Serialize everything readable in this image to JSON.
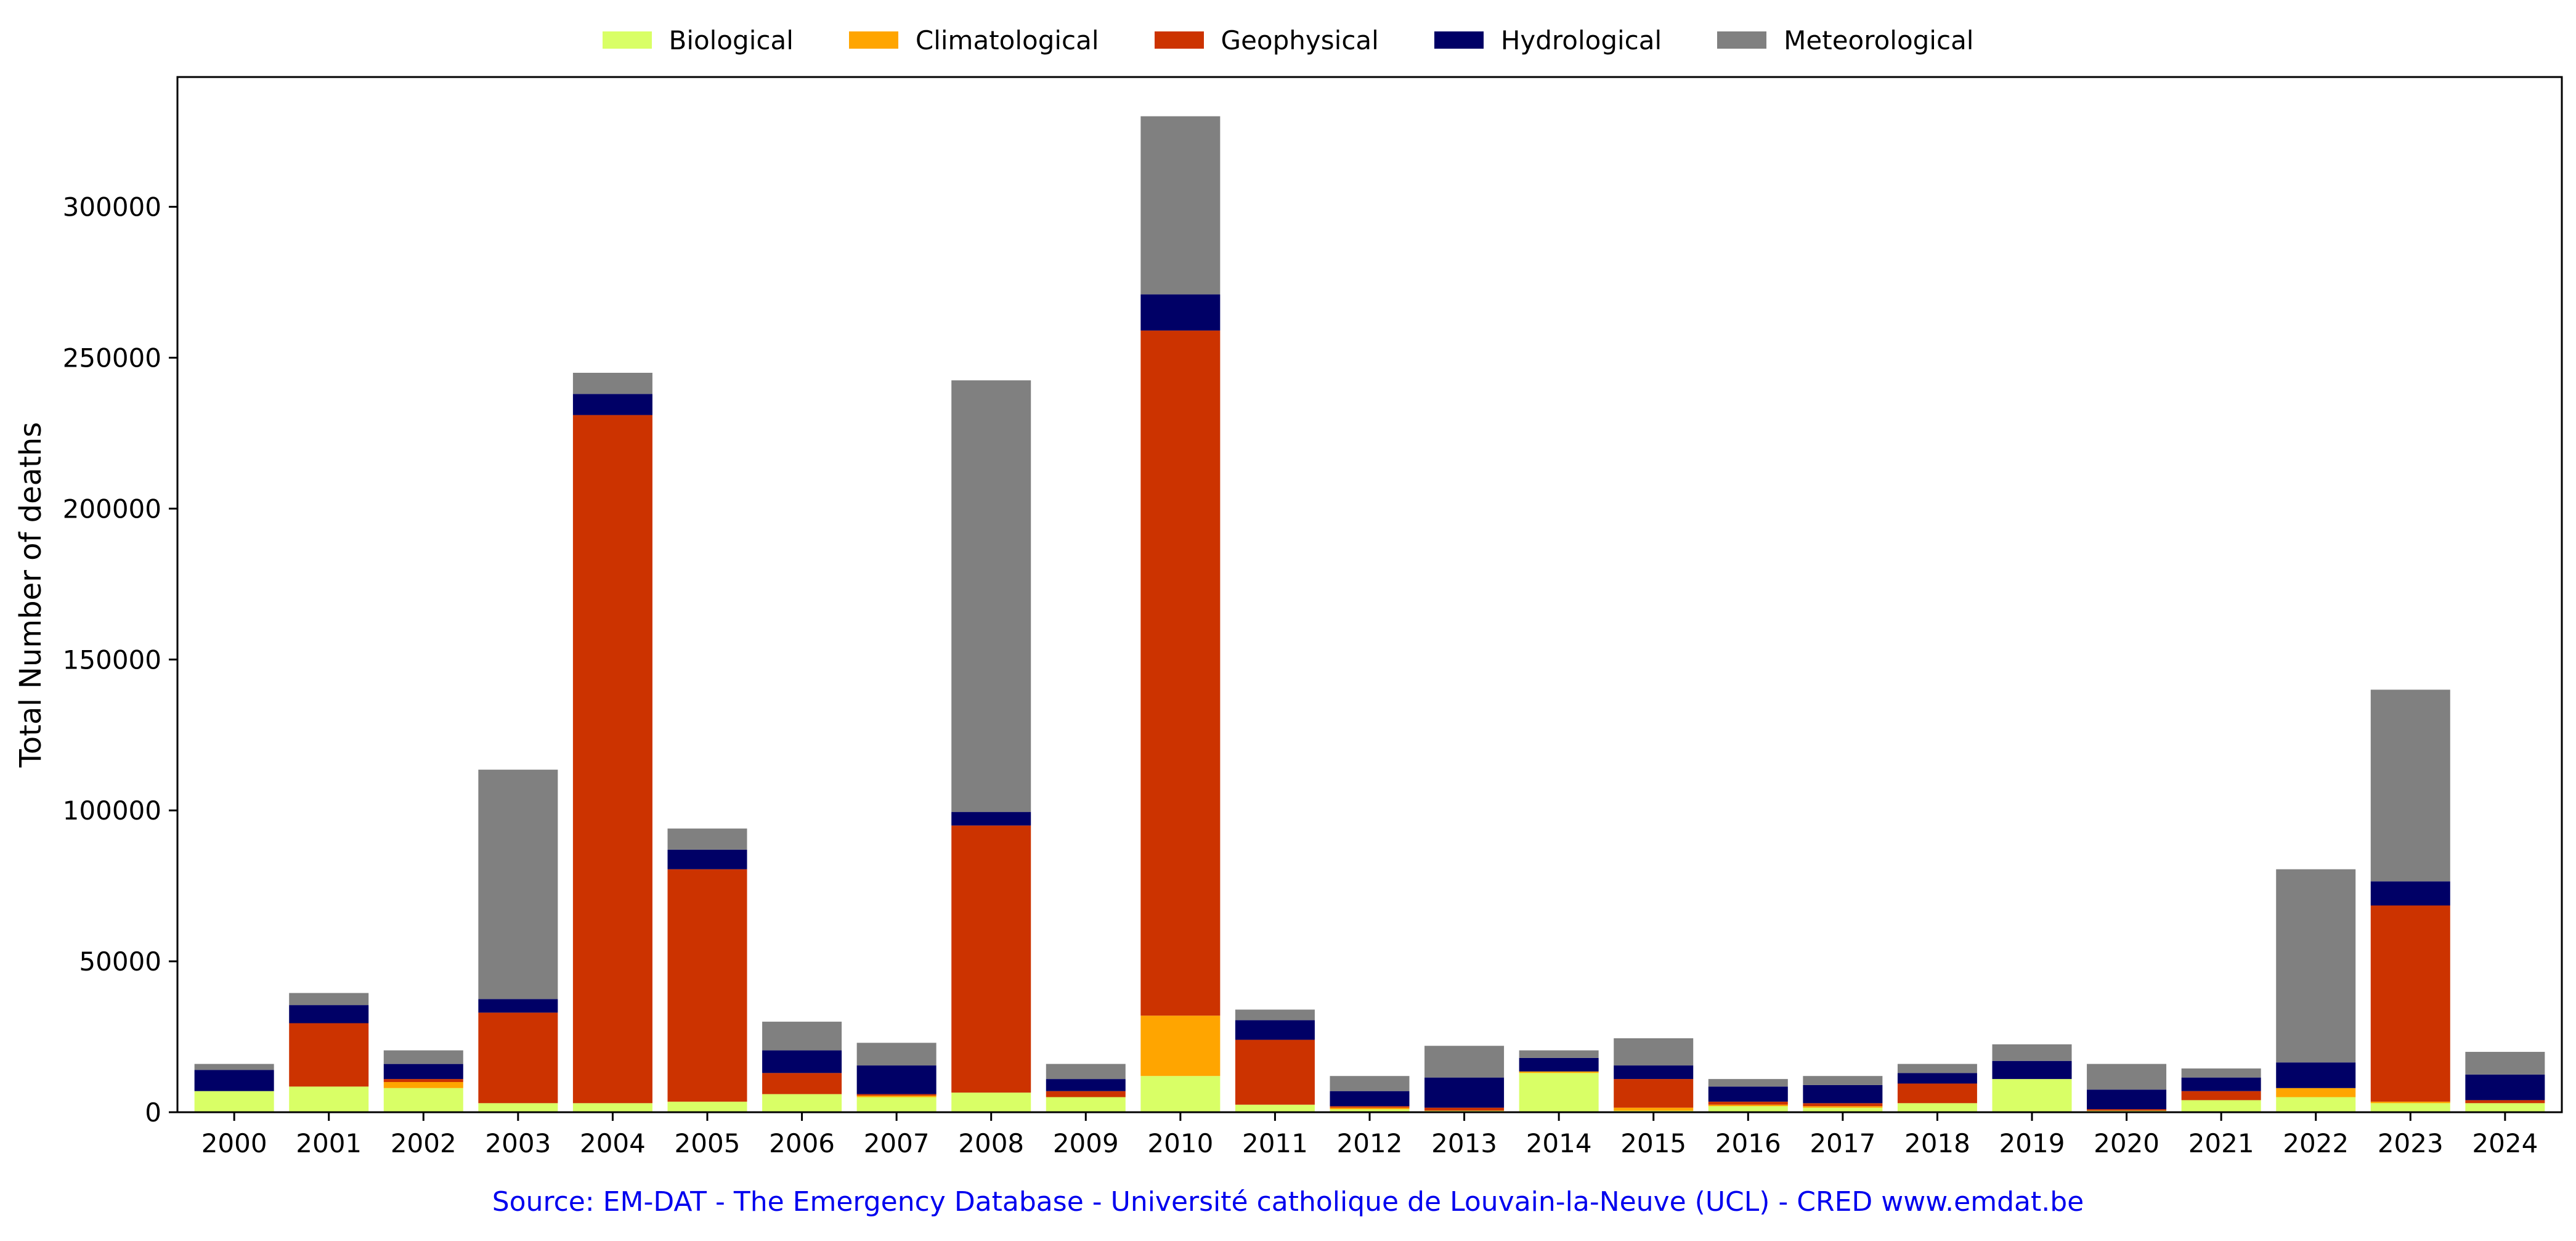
{
  "chart_data": {
    "type": "bar",
    "stacked": true,
    "categories": [
      "2000",
      "2001",
      "2002",
      "2003",
      "2004",
      "2005",
      "2006",
      "2007",
      "2008",
      "2009",
      "2010",
      "2011",
      "2012",
      "2013",
      "2014",
      "2015",
      "2016",
      "2017",
      "2018",
      "2019",
      "2020",
      "2021",
      "2022",
      "2023",
      "2024"
    ],
    "series": [
      {
        "name": "Biological",
        "color": "#d9ff66",
        "values": [
          7000,
          8500,
          8000,
          3000,
          3000,
          3500,
          6000,
          5000,
          6500,
          5000,
          12000,
          2500,
          1000,
          500,
          13000,
          500,
          2000,
          1500,
          3000,
          11000,
          500,
          4000,
          5000,
          3000,
          3000
        ]
      },
      {
        "name": "Climatological",
        "color": "#ffa500",
        "values": [
          0,
          0,
          2000,
          0,
          0,
          0,
          0,
          500,
          0,
          0,
          20000,
          0,
          500,
          0,
          500,
          1000,
          500,
          500,
          0,
          0,
          0,
          0,
          3000,
          500,
          0
        ]
      },
      {
        "name": "Geophysical",
        "color": "#cc3300",
        "values": [
          0,
          21000,
          1000,
          30000,
          228000,
          77000,
          7000,
          500,
          88500,
          2000,
          227000,
          21500,
          500,
          1000,
          0,
          9500,
          1000,
          1000,
          6500,
          0,
          500,
          3000,
          0,
          65000,
          1000
        ]
      },
      {
        "name": "Hydrological",
        "color": "#000066",
        "values": [
          7000,
          6000,
          5000,
          4500,
          7000,
          6500,
          7500,
          9500,
          4500,
          4000,
          12000,
          6500,
          5000,
          10000,
          4500,
          4500,
          5000,
          6000,
          3500,
          6000,
          6500,
          4500,
          8500,
          8000,
          8500
        ]
      },
      {
        "name": "Meteorological",
        "color": "#808080",
        "values": [
          2000,
          4000,
          4500,
          76000,
          7000,
          7000,
          9500,
          7500,
          143000,
          5000,
          59000,
          3500,
          5000,
          10500,
          2500,
          9000,
          2500,
          3000,
          3000,
          5500,
          8500,
          3000,
          64000,
          63500,
          7500
        ]
      }
    ],
    "title": "",
    "xlabel": "",
    "ylabel": "Total Number of deaths",
    "ylim": [
      0,
      343000
    ],
    "yticks": [
      0,
      50000,
      100000,
      150000,
      200000,
      250000,
      300000
    ],
    "legend_position": "top-center",
    "grid": false
  },
  "source_text": "Source: EM-DAT - The Emergency Database - Université catholique de Louvain-la-Neuve (UCL) - CRED www.emdat.be",
  "source_color": "#0000ee"
}
